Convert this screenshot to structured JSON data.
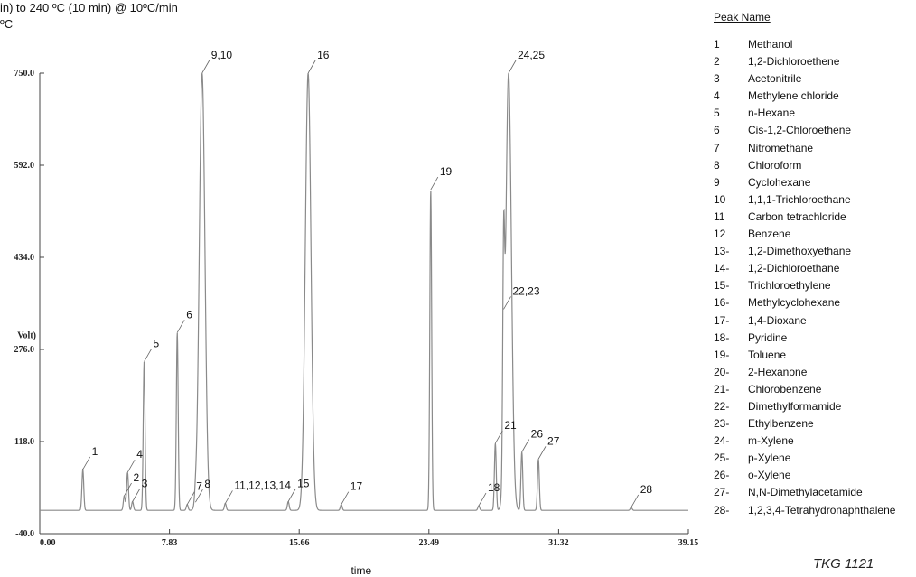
{
  "header": {
    "line1": "in)  to 240 ºC (10 min) @ 10ºC/min",
    "line2": "ºC"
  },
  "legend": {
    "title": "Peak Name",
    "items": [
      {
        "num": "1",
        "name": "Methanol"
      },
      {
        "num": "2",
        "name": "1,2-Dichloroethene"
      },
      {
        "num": "3",
        "name": "Acetonitrile"
      },
      {
        "num": "4",
        "name": "Methylene chloride"
      },
      {
        "num": "5",
        "name": "n-Hexane"
      },
      {
        "num": "6",
        "name": "Cis-1,2-Chloroethene"
      },
      {
        "num": "7",
        "name": "Nitromethane"
      },
      {
        "num": "8",
        "name": "Chloroform"
      },
      {
        "num": "9",
        "name": "Cyclohexane"
      },
      {
        "num": "10",
        "name": "1,1,1-Trichloroethane"
      },
      {
        "num": "11",
        "name": "Carbon tetrachloride"
      },
      {
        "num": "12",
        "name": "Benzene"
      },
      {
        "num": "13-",
        "name": "1,2-Dimethoxyethane"
      },
      {
        "num": "14-",
        "name": "1,2-Dichloroethane"
      },
      {
        "num": "15-",
        "name": "Trichloroethylene"
      },
      {
        "num": "16-",
        "name": "Methylcyclohexane"
      },
      {
        "num": "17-",
        "name": "1,4-Dioxane"
      },
      {
        "num": "18-",
        "name": "Pyridine"
      },
      {
        "num": "19-",
        "name": "Toluene"
      },
      {
        "num": "20-",
        "name": "2-Hexanone"
      },
      {
        "num": "21-",
        "name": "Chlorobenzene"
      },
      {
        "num": "22-",
        "name": "Dimethylformamide"
      },
      {
        "num": "23-",
        "name": "Ethylbenzene"
      },
      {
        "num": "24-",
        "name": "m-Xylene"
      },
      {
        "num": "25-",
        "name": "p-Xylene"
      },
      {
        "num": "26-",
        "name": "o-Xylene"
      },
      {
        "num": "27-",
        "name": "N,N-Dimethylacetamide"
      },
      {
        "num": "28-",
        "name": "1,2,3,4-Tetrahydronaphthalene"
      }
    ]
  },
  "watermark": "TKG 1121",
  "chart_data": {
    "type": "line",
    "xlabel": "time",
    "ylabel": "Volt)",
    "xlim": [
      0,
      39.15
    ],
    "ylim": [
      -40,
      750
    ],
    "x_ticks": [
      "0.00",
      "7.83",
      "15.66",
      "23.49",
      "31.32",
      "39.15"
    ],
    "y_ticks": [
      "-40.0",
      "118.0",
      "276.0",
      "434.0",
      "592.0",
      "750.0"
    ],
    "grid": false,
    "line_color": "#8a8a8a",
    "baseline": 0,
    "peaks": [
      {
        "label": "1",
        "rt": 2.6,
        "height": 70
      },
      {
        "label": "2",
        "rt": 5.1,
        "height": 25
      },
      {
        "label": "3",
        "rt": 5.6,
        "height": 15
      },
      {
        "label": "4",
        "rt": 5.3,
        "height": 65
      },
      {
        "label": "5",
        "rt": 6.3,
        "height": 255
      },
      {
        "label": "6",
        "rt": 8.3,
        "height": 305
      },
      {
        "label": "7",
        "rt": 8.9,
        "height": 10
      },
      {
        "label": "8",
        "rt": 9.4,
        "height": 14
      },
      {
        "label": "9,10",
        "rt": 9.8,
        "height": 750
      },
      {
        "label": "11,12,13,14",
        "rt": 11.2,
        "height": 12
      },
      {
        "label": "15",
        "rt": 15.0,
        "height": 15
      },
      {
        "label": "16",
        "rt": 16.2,
        "height": 750
      },
      {
        "label": "17",
        "rt": 18.2,
        "height": 10
      },
      {
        "label": "18",
        "rt": 26.5,
        "height": 8
      },
      {
        "label": "19",
        "rt": 23.6,
        "height": 550
      },
      {
        "label": "21",
        "rt": 27.5,
        "height": 115
      },
      {
        "label": "22,23",
        "rt": 28.0,
        "height": 345
      },
      {
        "label": "24,25",
        "rt": 28.3,
        "height": 750
      },
      {
        "label": "26",
        "rt": 29.1,
        "height": 100
      },
      {
        "label": "27",
        "rt": 30.1,
        "height": 88
      },
      {
        "label": "28",
        "rt": 35.7,
        "height": 5
      }
    ]
  }
}
